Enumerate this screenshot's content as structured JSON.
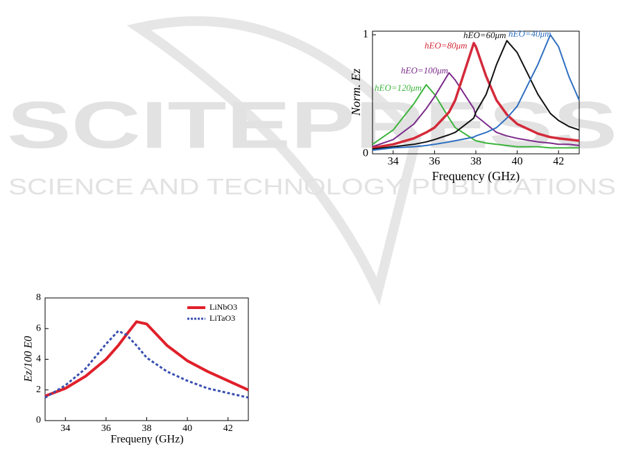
{
  "watermark": {
    "brand": "SCITEPRESS",
    "tagline": "SCIENCE AND TECHNOLOGY PUBLICATIONS"
  },
  "chart_data": [
    {
      "type": "line",
      "x_label": "Frequency (GHz)",
      "y_label": "Norm. Ez",
      "x": [
        33,
        34,
        35,
        35.6,
        36,
        36.7,
        37,
        37.9,
        38,
        38.5,
        39,
        39.5,
        40,
        41,
        41.6,
        42,
        42.5,
        43
      ],
      "series": [
        {
          "name": "hEO=120μm",
          "color": "#3cb43c",
          "values": [
            0.08,
            0.2,
            0.42,
            0.58,
            0.5,
            0.3,
            0.22,
            0.12,
            0.11,
            0.09,
            0.08,
            0.07,
            0.06,
            0.06,
            0.05,
            0.05,
            0.05,
            0.05
          ]
        },
        {
          "name": "hEO=100μm",
          "color": "#7a2a8a",
          "values": [
            0.06,
            0.12,
            0.25,
            0.38,
            0.48,
            0.68,
            0.62,
            0.38,
            0.32,
            0.25,
            0.18,
            0.15,
            0.13,
            0.1,
            0.09,
            0.08,
            0.08,
            0.07
          ]
        },
        {
          "name": "hEO=80μm",
          "color": "#d42a3a",
          "values": [
            0.05,
            0.08,
            0.13,
            0.18,
            0.22,
            0.35,
            0.45,
            0.93,
            0.9,
            0.65,
            0.45,
            0.33,
            0.25,
            0.17,
            0.14,
            0.13,
            0.12,
            0.11
          ]
        },
        {
          "name": "hEO=60μm",
          "color": "#111111",
          "values": [
            0.04,
            0.06,
            0.08,
            0.1,
            0.12,
            0.16,
            0.18,
            0.3,
            0.35,
            0.5,
            0.75,
            0.95,
            0.85,
            0.5,
            0.34,
            0.28,
            0.23,
            0.2
          ]
        },
        {
          "name": "hEO=40μm",
          "color": "#2e6fc0",
          "values": [
            0.03,
            0.05,
            0.06,
            0.07,
            0.08,
            0.1,
            0.11,
            0.14,
            0.15,
            0.18,
            0.22,
            0.3,
            0.4,
            0.75,
            1.0,
            0.9,
            0.65,
            0.45
          ]
        }
      ],
      "xlim": [
        33,
        43
      ],
      "xticks": [
        34,
        36,
        38,
        40,
        42
      ],
      "ylim": [
        0,
        1.03
      ],
      "yticks": [
        0,
        1
      ],
      "legend": false
    },
    {
      "type": "line",
      "x_label": "Frequeny (GHz)",
      "y_label": "Ez/100 E0",
      "x": [
        33,
        34,
        35,
        36,
        36.6,
        37,
        37.5,
        38,
        39,
        40,
        41,
        42,
        43
      ],
      "series": [
        {
          "name": "LiNbO3",
          "color": "#e0202a",
          "linestyle": "solid",
          "values": [
            1.6,
            2.1,
            2.9,
            4.0,
            4.9,
            5.6,
            6.45,
            6.3,
            4.9,
            3.9,
            3.2,
            2.6,
            2.0
          ]
        },
        {
          "name": "LiTaO3",
          "color": "#3a4fb0",
          "linestyle": "dashed",
          "values": [
            1.5,
            2.3,
            3.4,
            5.0,
            5.85,
            5.6,
            4.9,
            4.1,
            3.2,
            2.6,
            2.1,
            1.8,
            1.5
          ]
        }
      ],
      "xlim": [
        33,
        43
      ],
      "xticks": [
        34,
        36,
        38,
        40,
        42
      ],
      "ylim": [
        0,
        8
      ],
      "yticks": [
        0,
        2,
        4,
        6,
        8
      ],
      "legend": "upper right"
    }
  ]
}
